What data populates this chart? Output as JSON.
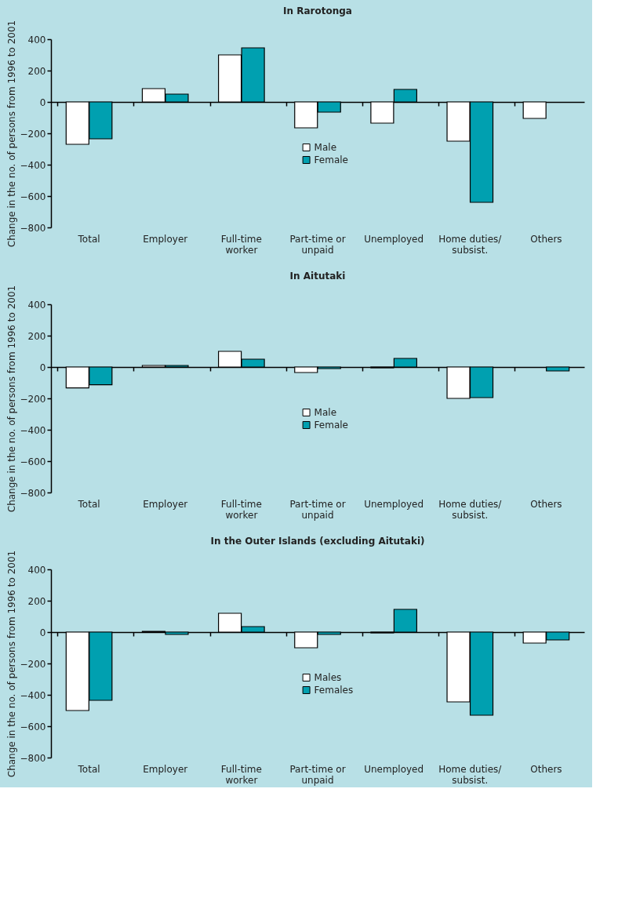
{
  "chart_data": [
    {
      "type": "bar",
      "title": "In Rarotonga",
      "ylabel": "Change in the no. of persons from 1996 to 2001",
      "categories": [
        "Total",
        "Employer",
        "Full-time\nworker",
        "Part-time or\nunpaid",
        "Unemployed",
        "Home duties/\nsubsist.",
        "Others"
      ],
      "series": [
        {
          "name": "Male",
          "color": "#ffffff",
          "values": [
            -270,
            85,
            300,
            -165,
            -135,
            -250,
            -105
          ]
        },
        {
          "name": "Female",
          "color": "#00a0b0",
          "values": [
            -235,
            50,
            345,
            -65,
            80,
            -640,
            null
          ]
        }
      ],
      "ylim": [
        -800,
        400
      ],
      "yticks": [
        -800,
        -600,
        -400,
        -200,
        0,
        200,
        400
      ],
      "legend": "center"
    },
    {
      "type": "bar",
      "title": "In Aitutaki",
      "ylabel": "Change in the no. of persons from 1996 to 2001",
      "categories": [
        "Total",
        "Employer",
        "Full-time\nworker",
        "Part-time or\nunpaid",
        "Unemployed",
        "Home duties/\nsubsist.",
        "Others"
      ],
      "series": [
        {
          "name": "Male",
          "color": "#ffffff",
          "values": [
            -133,
            10,
            100,
            -35,
            -5,
            -200,
            null
          ]
        },
        {
          "name": "Female",
          "color": "#00a0b0",
          "values": [
            -113,
            10,
            50,
            -10,
            55,
            -195,
            -25
          ]
        }
      ],
      "ylim": [
        -800,
        400
      ],
      "yticks": [
        -800,
        -600,
        -400,
        -200,
        0,
        200,
        400
      ],
      "legend": "center"
    },
    {
      "type": "bar",
      "title": "In the Outer Islands (excluding Aitutaki)",
      "ylabel": "Change in the no. of persons from 1996 to 2001",
      "categories": [
        "Total",
        "Employer",
        "Full-time\nworker",
        "Part-time or\nunpaid",
        "Unemployed",
        "Home duties/\nsubsist.",
        "Others"
      ],
      "series": [
        {
          "name": "Males",
          "color": "#ffffff",
          "values": [
            -500,
            5,
            120,
            -100,
            -5,
            -445,
            -70
          ]
        },
        {
          "name": "Females",
          "color": "#00a0b0",
          "values": [
            -435,
            -15,
            35,
            -15,
            145,
            -530,
            -50
          ]
        }
      ],
      "ylim": [
        -800,
        400
      ],
      "yticks": [
        -800,
        -600,
        -400,
        -200,
        0,
        200,
        400
      ],
      "legend": "center"
    }
  ]
}
